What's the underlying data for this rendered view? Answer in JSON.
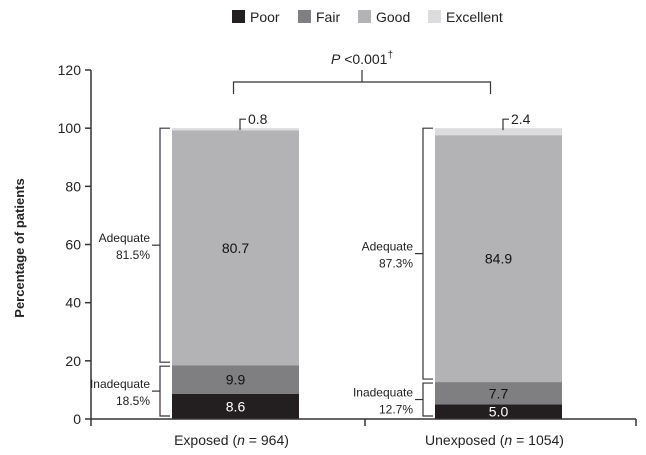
{
  "chart_data": {
    "type": "bar",
    "stacked": true,
    "ylabel": "Percentage of patients",
    "ylim": [
      0,
      120
    ],
    "yticks": [
      0,
      20,
      40,
      60,
      80,
      100,
      120
    ],
    "legend_position": "top-center",
    "categories": [
      "Exposed (n = 964)",
      "Unexposed (n = 1054)"
    ],
    "category_parts": [
      {
        "prefix": "Exposed (",
        "n": "n",
        "suffix": " = 964)"
      },
      {
        "prefix": "Unexposed (",
        "n": "n",
        "suffix": " = 1054)"
      }
    ],
    "series": [
      {
        "name": "Poor",
        "color": "#231f20",
        "values": [
          8.6,
          5.0
        ],
        "labels": [
          "8.6",
          "5.0"
        ],
        "label_color": "#ffffff"
      },
      {
        "name": "Fair",
        "color": "#7f7f81",
        "values": [
          9.9,
          7.7
        ],
        "labels": [
          "9.9",
          "7.7"
        ],
        "label_color": "#111111"
      },
      {
        "name": "Good",
        "color": "#b3b3b5",
        "values": [
          80.7,
          84.9
        ],
        "labels": [
          "80.7",
          "84.9"
        ],
        "label_color": "#111111"
      },
      {
        "name": "Excellent",
        "color": "#dcdcde",
        "values": [
          0.8,
          2.4
        ],
        "labels": [
          "0.8",
          "2.4"
        ],
        "label_color": "#111111"
      }
    ],
    "groups": [
      {
        "adequate": {
          "label": "Adequate",
          "value": "81.5%"
        },
        "inadequate": {
          "label": "Inadequate",
          "value": "18.5%"
        }
      },
      {
        "adequate": {
          "label": "Adequate",
          "value": "87.3%"
        },
        "inadequate": {
          "label": "Inadequate",
          "value": "12.7%"
        }
      }
    ],
    "significance": {
      "p": "P",
      "text": " <0.001",
      "sup": "†"
    }
  }
}
